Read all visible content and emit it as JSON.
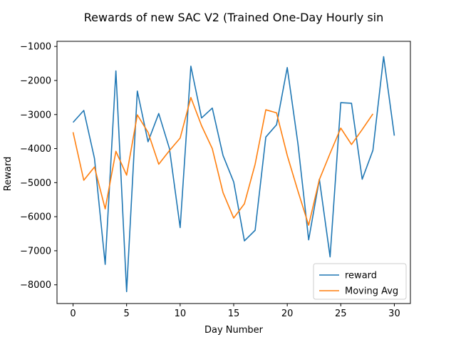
{
  "chart_data": {
    "type": "line",
    "title": "Rewards of new SAC V2 (Trained One-Day Hourly sin",
    "xlabel": "Day Number",
    "ylabel": "Reward",
    "xlim": [
      -1.5,
      31.5
    ],
    "ylim": [
      -8550,
      -850
    ],
    "x_ticks": [
      0,
      5,
      10,
      15,
      20,
      25,
      30
    ],
    "y_ticks": [
      -1000,
      -2000,
      -3000,
      -4000,
      -5000,
      -6000,
      -7000,
      -8000
    ],
    "x_tick_labels": [
      "0",
      "5",
      "10",
      "15",
      "20",
      "25",
      "30"
    ],
    "y_tick_labels": [
      "−1000",
      "−2000",
      "−3000",
      "−4000",
      "−5000",
      "−6000",
      "−7000",
      "−8000"
    ],
    "grid": false,
    "legend_position": "lower right",
    "series": [
      {
        "name": "reward",
        "color": "#1f77b4",
        "x": [
          0,
          1,
          2,
          3,
          4,
          5,
          6,
          7,
          8,
          9,
          10,
          11,
          12,
          13,
          14,
          15,
          16,
          17,
          18,
          19,
          20,
          21,
          22,
          23,
          24,
          25,
          26,
          27,
          28,
          29,
          30
        ],
        "values": [
          -3230,
          -2880,
          -4290,
          -7400,
          -1720,
          -8200,
          -2310,
          -3800,
          -2970,
          -4000,
          -6320,
          -1580,
          -3100,
          -2810,
          -4200,
          -4980,
          -6710,
          -6400,
          -3660,
          -3300,
          -1620,
          -3860,
          -6680,
          -4900,
          -7180,
          -2650,
          -2670,
          -4900,
          -4050,
          -1300,
          -3620
        ]
      },
      {
        "name": "Moving Avg",
        "color": "#ff7f0e",
        "x": [
          0,
          1,
          2,
          3,
          4,
          5,
          6,
          7,
          8,
          9,
          10,
          11,
          12,
          13,
          14,
          15,
          16,
          17,
          18,
          19,
          20,
          21,
          22,
          23,
          24,
          25,
          26,
          27,
          28
        ],
        "values": [
          -3520,
          -4930,
          -4540,
          -5770,
          -4080,
          -4780,
          -3010,
          -3520,
          -4460,
          -4060,
          -3690,
          -2500,
          -3330,
          -4000,
          -5290,
          -6040,
          -5620,
          -4460,
          -2860,
          -2950,
          -4200,
          -5250,
          -6250,
          -4910,
          -4140,
          -3400,
          -3880,
          -3440,
          -2980
        ]
      }
    ]
  }
}
